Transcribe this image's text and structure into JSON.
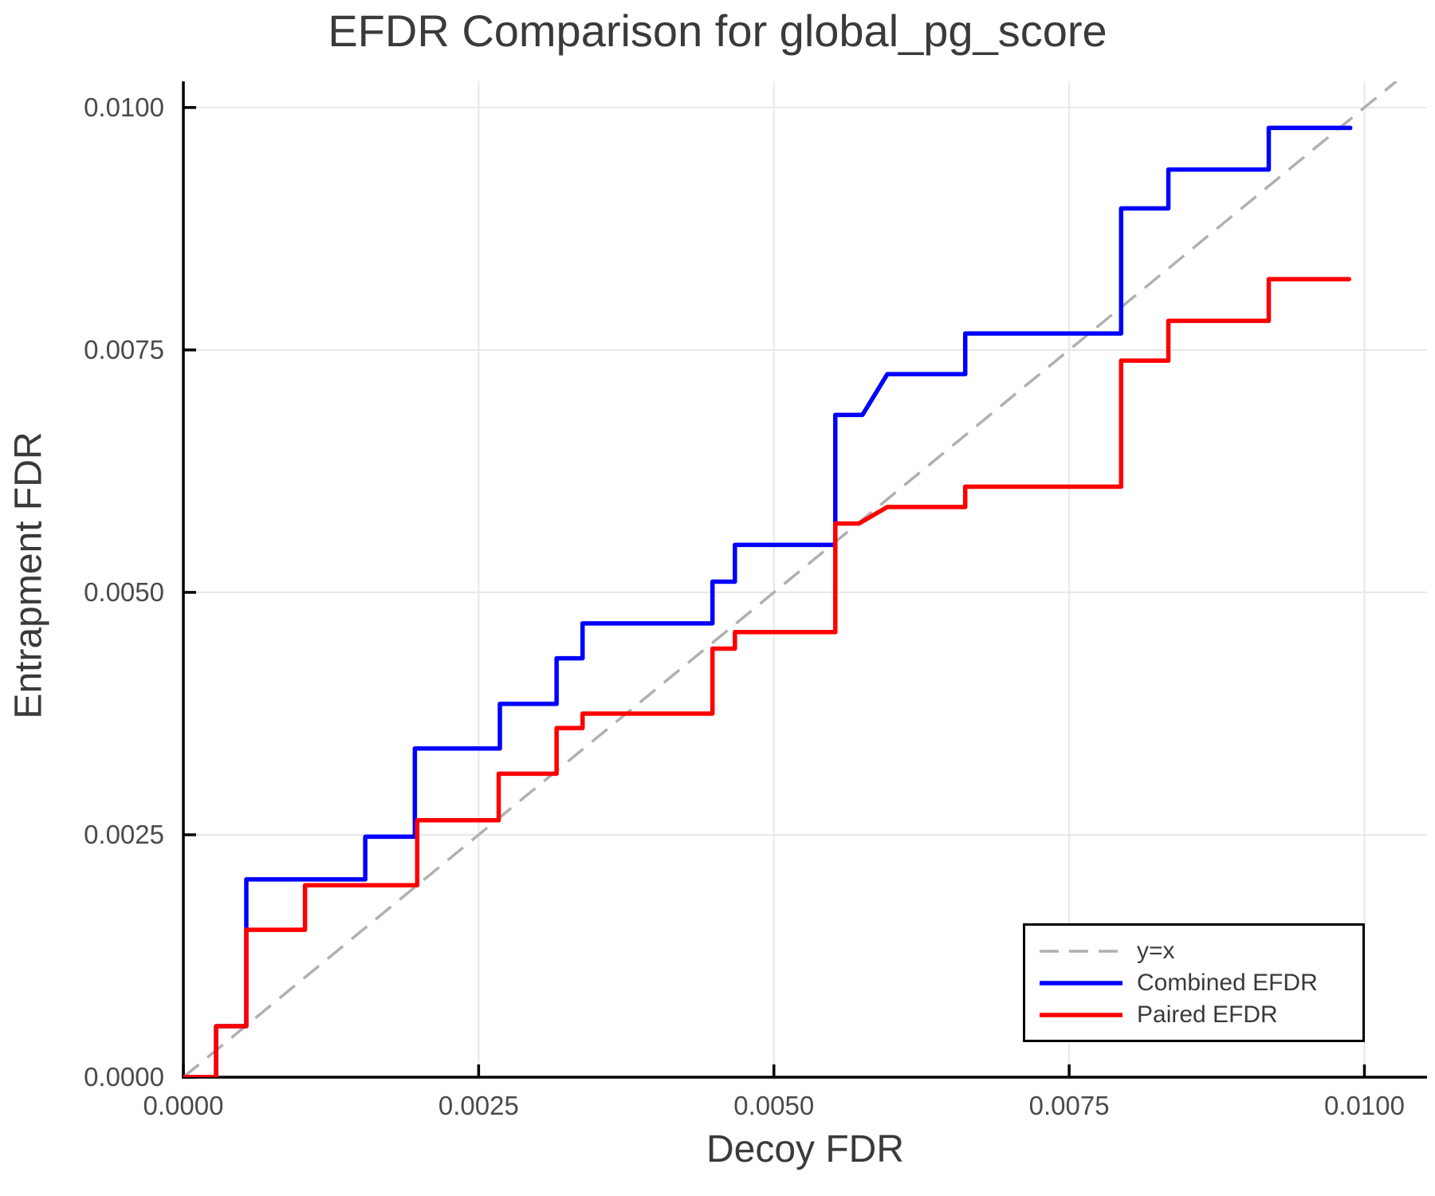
{
  "chart_data": {
    "type": "line",
    "title": "EFDR Comparison for global_pg_score",
    "xlabel": "Decoy FDR",
    "ylabel": "Entrapment FDR",
    "xlim": [
      0,
      0.01053
    ],
    "ylim": [
      0,
      0.01027
    ],
    "grid": true,
    "legend_position": "lower right",
    "colors": {
      "background": "#ffffff",
      "grid": "#e8e8e8",
      "spine": "#000000",
      "tick_label": "#4a4a4a",
      "text": "#3a3a3a",
      "reference": "#b0b0b0",
      "combined": "#0000ff",
      "paired": "#ff0000"
    },
    "x_ticks": [
      {
        "value": 0.0,
        "label": "0.0000"
      },
      {
        "value": 0.0025,
        "label": "0.0025"
      },
      {
        "value": 0.005,
        "label": "0.0050"
      },
      {
        "value": 0.0075,
        "label": "0.0075"
      },
      {
        "value": 0.01,
        "label": "0.0100"
      }
    ],
    "y_ticks": [
      {
        "value": 0.0,
        "label": "0.0000"
      },
      {
        "value": 0.0025,
        "label": "0.0025"
      },
      {
        "value": 0.005,
        "label": "0.0050"
      },
      {
        "value": 0.0075,
        "label": "0.0075"
      },
      {
        "value": 0.01,
        "label": "0.0100"
      }
    ],
    "reference_line": {
      "label": "y=x",
      "points": [
        [
          0,
          0
        ],
        [
          0.01027,
          0.01027
        ]
      ],
      "color": "#b0b0b0",
      "dashed": true
    },
    "series": [
      {
        "name": "Combined EFDR",
        "color": "#0000ff",
        "points": [
          [
            0.0,
            0.0
          ],
          [
            0.000277,
            0.0
          ],
          [
            0.000277,
            0.000526
          ],
          [
            0.000533,
            0.000526
          ],
          [
            0.000533,
            0.00204
          ],
          [
            0.00154,
            0.00204
          ],
          [
            0.00154,
            0.00248
          ],
          [
            0.00196,
            0.00248
          ],
          [
            0.00196,
            0.00339
          ],
          [
            0.00268,
            0.00339
          ],
          [
            0.00268,
            0.00385
          ],
          [
            0.00316,
            0.00385
          ],
          [
            0.00316,
            0.00432
          ],
          [
            0.00338,
            0.00432
          ],
          [
            0.00338,
            0.00468
          ],
          [
            0.00448,
            0.00468
          ],
          [
            0.00448,
            0.00511
          ],
          [
            0.00467,
            0.00511
          ],
          [
            0.00467,
            0.00549
          ],
          [
            0.00552,
            0.00549
          ],
          [
            0.00552,
            0.00683
          ],
          [
            0.00575,
            0.00683
          ],
          [
            0.00596,
            0.00725
          ],
          [
            0.00662,
            0.00725
          ],
          [
            0.00662,
            0.00767
          ],
          [
            0.00794,
            0.00767
          ],
          [
            0.00794,
            0.00896
          ],
          [
            0.00834,
            0.00896
          ],
          [
            0.00834,
            0.00936
          ],
          [
            0.00919,
            0.00936
          ],
          [
            0.00919,
            0.00979
          ],
          [
            0.00988,
            0.00979
          ]
        ]
      },
      {
        "name": "Paired EFDR",
        "color": "#ff0000",
        "points": [
          [
            0.0,
            0.0
          ],
          [
            0.000277,
            0.0
          ],
          [
            0.000277,
            0.000526
          ],
          [
            0.000533,
            0.000526
          ],
          [
            0.000533,
            0.00152
          ],
          [
            0.00103,
            0.00152
          ],
          [
            0.00103,
            0.00198
          ],
          [
            0.00198,
            0.00198
          ],
          [
            0.00198,
            0.00265
          ],
          [
            0.00267,
            0.00265
          ],
          [
            0.00267,
            0.00313
          ],
          [
            0.00316,
            0.00313
          ],
          [
            0.00316,
            0.0036
          ],
          [
            0.00338,
            0.0036
          ],
          [
            0.00338,
            0.00375
          ],
          [
            0.00448,
            0.00375
          ],
          [
            0.00448,
            0.00442
          ],
          [
            0.00467,
            0.00442
          ],
          [
            0.00467,
            0.00459
          ],
          [
            0.00552,
            0.00459
          ],
          [
            0.00552,
            0.00571
          ],
          [
            0.00572,
            0.00571
          ],
          [
            0.00596,
            0.00588
          ],
          [
            0.00662,
            0.00588
          ],
          [
            0.00662,
            0.00609
          ],
          [
            0.00794,
            0.00609
          ],
          [
            0.00794,
            0.00739
          ],
          [
            0.00834,
            0.00739
          ],
          [
            0.00834,
            0.0078
          ],
          [
            0.00919,
            0.0078
          ],
          [
            0.00919,
            0.00823
          ],
          [
            0.00987,
            0.00823
          ]
        ]
      }
    ],
    "legend": {
      "items": [
        {
          "label": "y=x",
          "color": "#b0b0b0",
          "dashed": true
        },
        {
          "label": "Combined EFDR",
          "color": "#0000ff",
          "dashed": false
        },
        {
          "label": "Paired EFDR",
          "color": "#ff0000",
          "dashed": false
        }
      ]
    }
  }
}
